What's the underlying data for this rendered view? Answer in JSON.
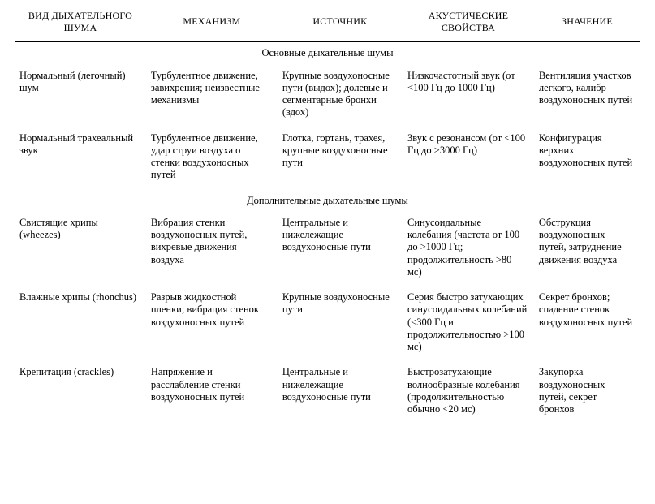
{
  "headers": {
    "col0": "ВИД ДЫХАТЕЛЬНОГО ШУМА",
    "col1": "МЕХАНИЗМ",
    "col2": "ИСТОЧНИК",
    "col3": "АКУСТИЧЕСКИЕ СВОЙСТВА",
    "col4": "ЗНАЧЕНИЕ"
  },
  "sections": {
    "main": "Основные дыхательные шумы",
    "extra": "Дополнительные дыхательные шумы"
  },
  "rows": {
    "r0": {
      "c0": "Нормальный (легочный) шум",
      "c1": "Турбулентное движение, завихрения; неизвестные механизмы",
      "c2": "Крупные воздухоносные пути (выдох); долевые и сегментарные бронхи (вдох)",
      "c3": "Низкочастотный звук (от <100 Гц до 1000 Гц)",
      "c4": "Вентиляция участков легкого, калибр воздухоносных путей"
    },
    "r1": {
      "c0": "Нормальный трахеальный звук",
      "c1": "Турбулентное движение, удар струи воздуха о стенки воздухоносных путей",
      "c2": "Глотка, гортань, трахея, крупные воздухоносные пути",
      "c3": "Звук с резонансом (от <100 Гц до >3000 Гц)",
      "c4": "Конфигурация верхних воздухоносных путей"
    },
    "r2": {
      "c0": "Свистящие хрипы (wheezes)",
      "c1": "Вибрация стенки воздухоносных путей, вихревые движения воздуха",
      "c2": "Центральные и нижележащие воздухоносные пути",
      "c3": "Синусоидальные колебания (частота от 100 до >1000 Гц; продолжительность >80 мс)",
      "c4": "Обструкция воздухоносных путей, затруднение движения воздуха"
    },
    "r3": {
      "c0": "Влажные хрипы (rhonchus)",
      "c1": "Разрыв жидкостной пленки; вибрация стенок воздухоносных путей",
      "c2": "Крупные воздухоносные пути",
      "c3": "Серия быстро затухающих синусоидальных колебаний (<300 Гц и продолжительностью >100 мс)",
      "c4": "Секрет бронхов; спадение стенок воздухоносных путей"
    },
    "r4": {
      "c0": "Крепитация (crackles)",
      "c1": "Напряжение и расслабление стенки воздухоносных путей",
      "c2": "Центральные и нижележащие воздухоносные пути",
      "c3": "Быстрозатухающие волнообразные колебания (продолжительностью обычно <20 мс)",
      "c4": "Закупорка воздухоносных путей, секрет бронхов"
    }
  }
}
